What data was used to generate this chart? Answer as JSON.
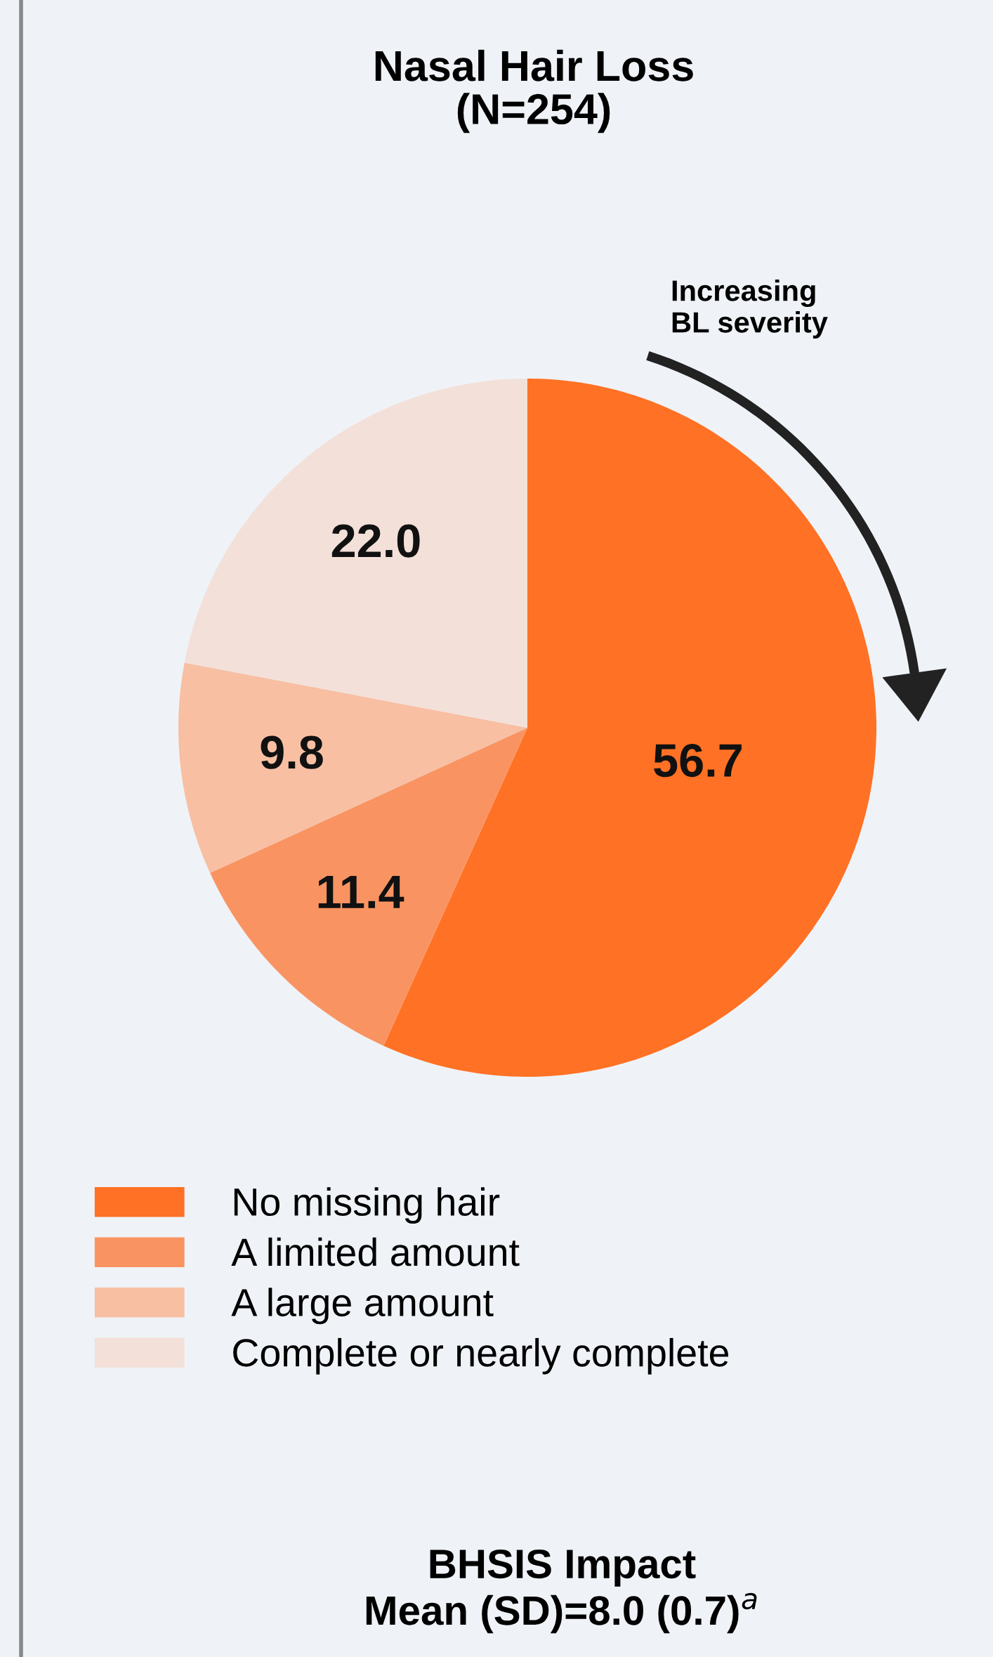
{
  "chart_data": {
    "type": "pie",
    "title": "Nasal Hair Loss\n(N=254)",
    "categories": [
      "No missing hair",
      "A limited amount",
      "A large amount",
      "Complete or nearly complete"
    ],
    "values": [
      56.7,
      11.4,
      9.8,
      22.0
    ],
    "colors": [
      "#ff7124",
      "#f99462",
      "#f8bfa3",
      "#f3e0d9"
    ],
    "value_labels": [
      "56.7",
      "11.4",
      "9.8",
      "22.0"
    ],
    "legend": "bottom",
    "annotations": [
      "Increasing\nBL severity",
      "BHSIS Impact\nMean (SD)=8.0 (0.7)$^{a}$"
    ]
  }
}
